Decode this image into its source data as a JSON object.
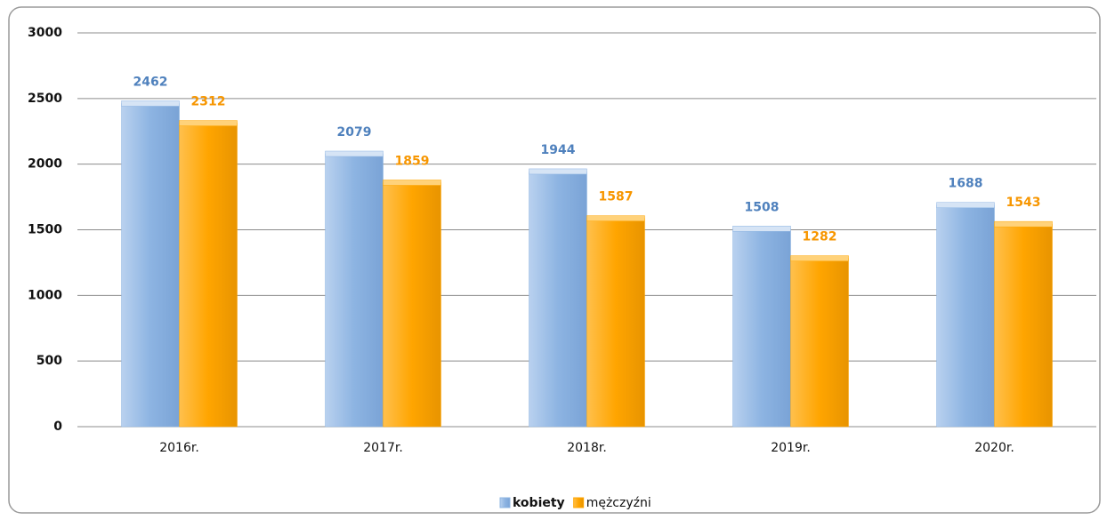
{
  "chart_data": {
    "type": "bar",
    "categories": [
      "2016r.",
      "2017r.",
      "2018r.",
      "2019r.",
      "2020r."
    ],
    "series": [
      {
        "name": "kobiety",
        "color": "#8db4e2",
        "values": [
          2462,
          2079,
          1944,
          1508,
          1688
        ]
      },
      {
        "name": "mężczyźni",
        "color": "#ffa500",
        "values": [
          2312,
          1859,
          1587,
          1282,
          1543
        ]
      }
    ],
    "ylim": [
      0,
      3000
    ],
    "yticks": [
      0,
      500,
      1000,
      1500,
      2000,
      2500,
      3000
    ],
    "grid": true,
    "legend": "bottom"
  }
}
